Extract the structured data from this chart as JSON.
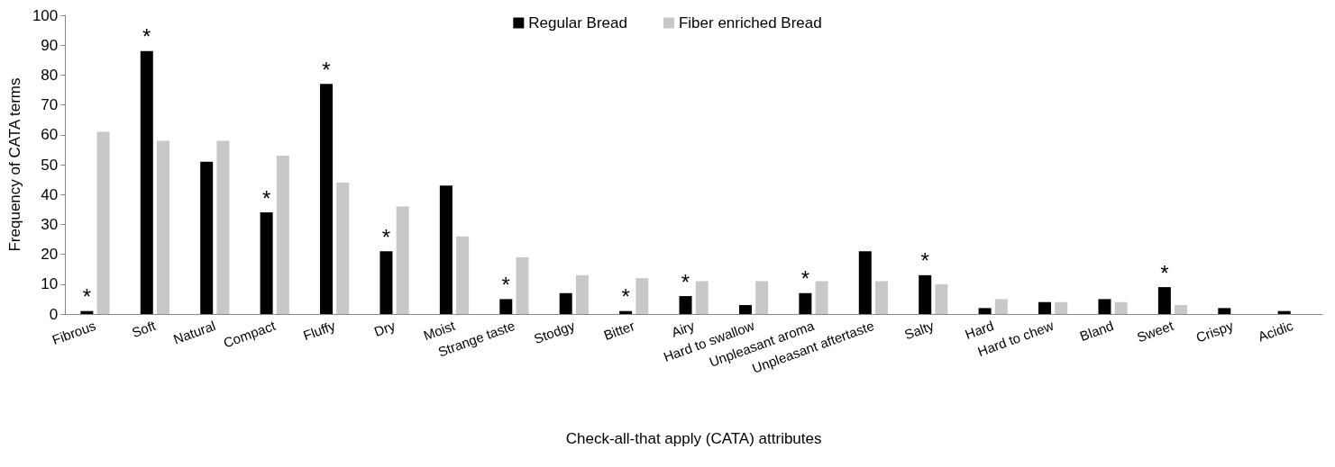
{
  "chart_data": {
    "type": "bar",
    "xlabel": "Check-all-that apply (CATA) attributes",
    "ylabel": "Frequency of CATA terms",
    "categories": [
      "Fibrous",
      "Soft",
      "Natural",
      "Compact",
      "Fluffy",
      "Dry",
      "Moist",
      "Strange taste",
      "Stodgy",
      "Bitter",
      "Airy",
      "Hard to swallow",
      "Unpleasant aroma",
      "Unpleasant aftertaste",
      "Salty",
      "Hard",
      "Hard to chew",
      "Bland",
      "Sweet",
      "Crispy",
      "Acidic"
    ],
    "series": [
      {
        "name": "Regular Bread",
        "color": "#000000",
        "values": [
          1,
          88,
          51,
          34,
          77,
          21,
          43,
          5,
          7,
          1,
          6,
          3,
          7,
          21,
          13,
          2,
          4,
          5,
          9,
          2,
          1
        ]
      },
      {
        "name": "Fiber enriched Bread",
        "color": "#c8c8c8",
        "values": [
          61,
          58,
          58,
          53,
          44,
          36,
          26,
          19,
          13,
          12,
          11,
          11,
          11,
          11,
          10,
          5,
          4,
          4,
          3,
          0,
          0
        ]
      }
    ],
    "ylim": [
      0,
      100
    ],
    "yticks": [
      0,
      10,
      20,
      30,
      40,
      50,
      60,
      70,
      80,
      90,
      100
    ],
    "grid": false,
    "legend": "top",
    "annotations": [
      {
        "text": "*",
        "x": "Fibrous",
        "y": 1
      },
      {
        "text": "*",
        "x": "Soft",
        "y": 88
      },
      {
        "text": "*",
        "x": "Compact",
        "y": 34
      },
      {
        "text": "*",
        "x": "Fluffy",
        "y": 77
      },
      {
        "text": "*",
        "x": "Dry",
        "y": 21
      },
      {
        "text": "*",
        "x": "Strange taste",
        "y": 5
      },
      {
        "text": "*",
        "x": "Bitter",
        "y": 1
      },
      {
        "text": "*",
        "x": "Airy",
        "y": 6
      },
      {
        "text": "*",
        "x": "Unpleasant aroma",
        "y": 7
      },
      {
        "text": "*",
        "x": "Salty",
        "y": 13
      },
      {
        "text": "*",
        "x": "Sweet",
        "y": 9
      }
    ]
  }
}
